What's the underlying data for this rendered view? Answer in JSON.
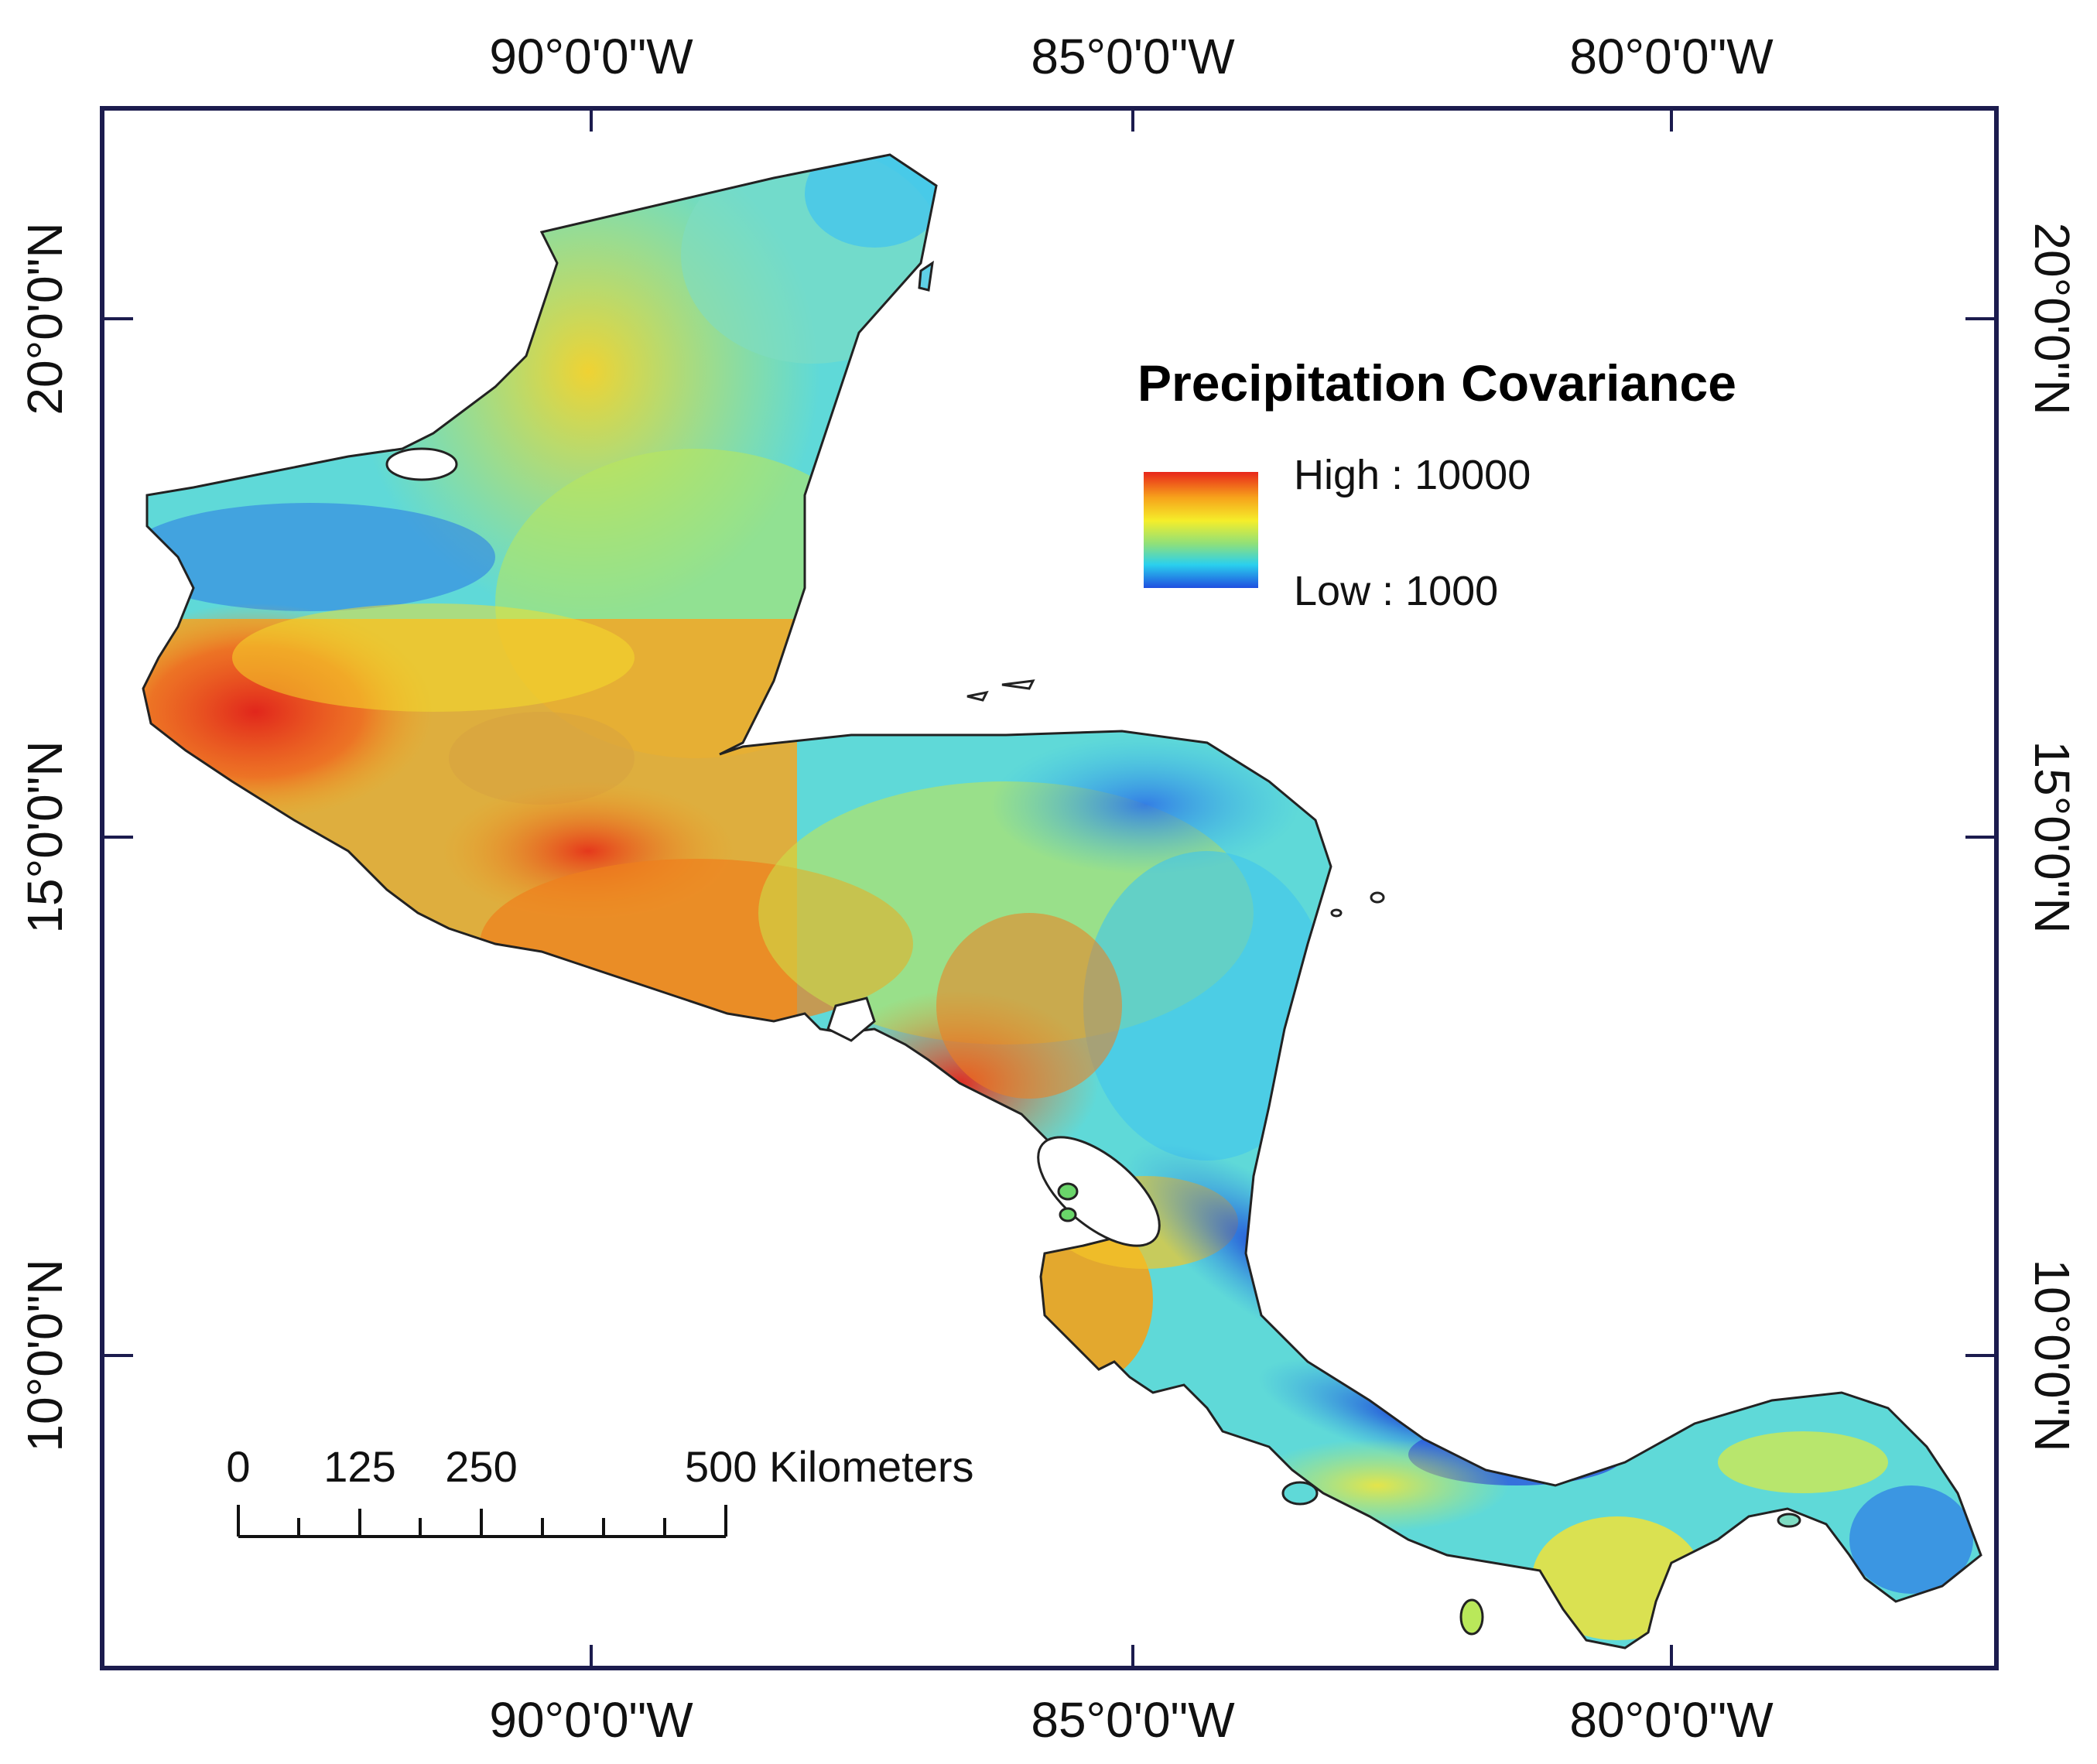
{
  "map": {
    "top_ticks": [
      "90°0'0\"W",
      "85°0'0\"W",
      "80°0'0\"W"
    ],
    "bottom_ticks": [
      "90°0'0\"W",
      "85°0'0\"W",
      "80°0'0\"W"
    ],
    "left_ticks": [
      "20°0'0\"N",
      "15°0'0\"N",
      "10°0'0\"N"
    ],
    "right_ticks": [
      "20°0'0\"N",
      "15°0'0\"N",
      "10°0'0\"N"
    ],
    "frame_color": "#1c1c4e",
    "coastline_color": "#222222"
  },
  "legend": {
    "title": "Precipitation Covariance",
    "high_label": "High : 10000",
    "low_label": "Low : 1000",
    "high_value": 10000,
    "low_value": 1000,
    "ramp_colors": [
      "#e8261b",
      "#f7a21b",
      "#f5ee2a",
      "#8fe07a",
      "#2ad0ee",
      "#1f4fe0"
    ]
  },
  "scale_bar": {
    "labels": [
      "0",
      "125",
      "250",
      "500 Kilometers"
    ],
    "max_km": 500
  }
}
